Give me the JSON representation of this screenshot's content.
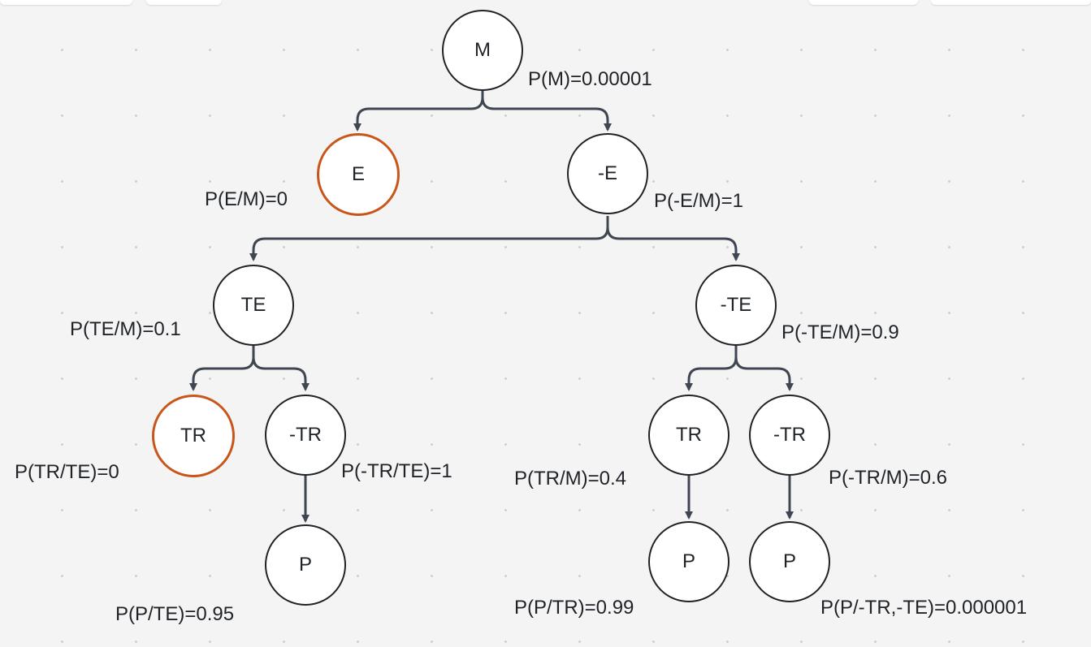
{
  "colors": {
    "edge": "#3f4652",
    "node_border": "#1f2328",
    "highlight_border": "#c8561a",
    "background": "#f4f4f5"
  },
  "nodes": {
    "m": "M",
    "e": "E",
    "not_e": "-E",
    "te": "TE",
    "not_te": "-TE",
    "tr_under_te": "TR",
    "not_tr_under_te": "-TR",
    "p_under_te": "P",
    "tr_under_not_te": "TR",
    "not_tr_under_not_te": "-TR",
    "p_under_tr": "P",
    "p_under_not_tr": "P"
  },
  "probabilities": {
    "p_m": "P(M)=0.00001",
    "p_e_m": "P(E/M)=0",
    "p_not_e_m": "P(-E/M)=1",
    "p_te_m": "P(TE/M)=0.1",
    "p_not_te_m": "P(-TE/M)=0.9",
    "p_tr_te": "P(TR/TE)=0",
    "p_not_tr_te": "P(-TR/TE)=1",
    "p_p_te": "P(P/TE)=0.95",
    "p_tr_m": "P(TR/M)=0.4",
    "p_not_tr_m": "P(-TR/M)=0.6",
    "p_p_tr": "P(P/TR)=0.99",
    "p_p_not_tr_not_te": "P(P/-TR,-TE)=0.000001"
  }
}
